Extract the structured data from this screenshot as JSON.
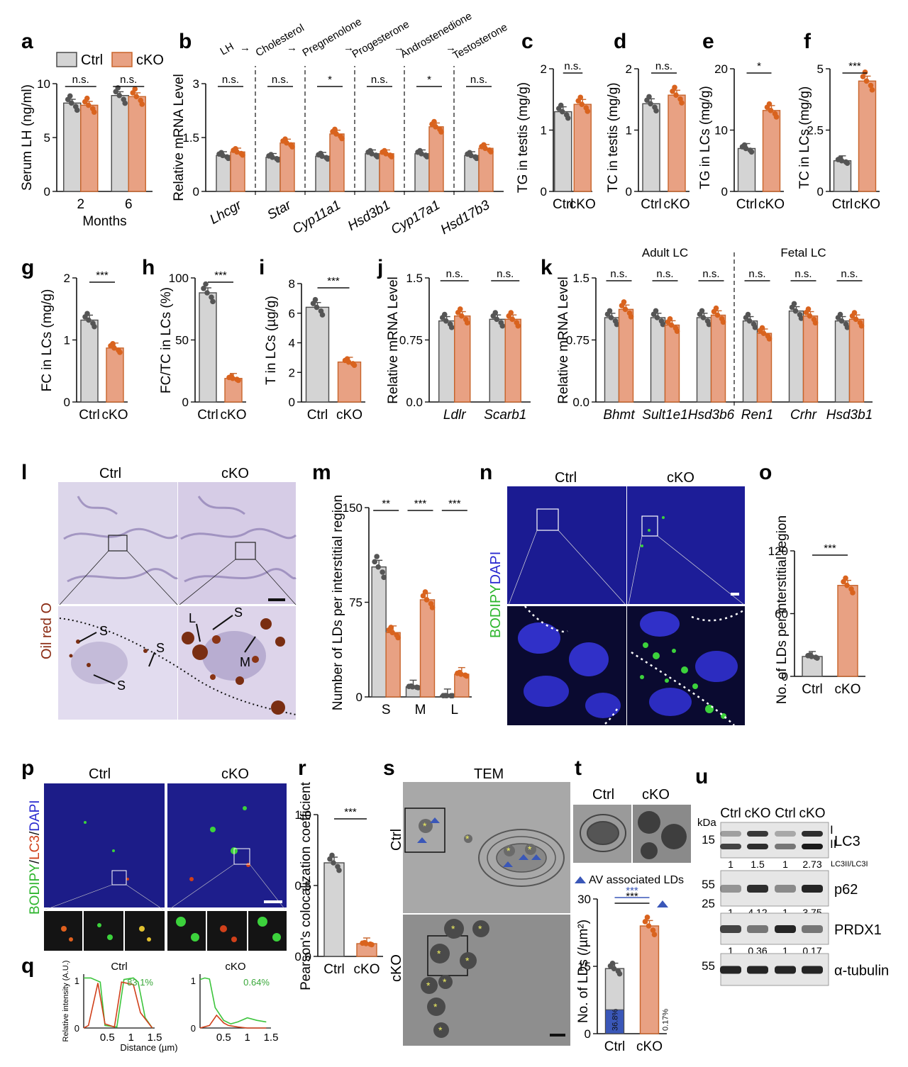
{
  "legend": {
    "ctrl": "Ctrl",
    "cko": "cKO"
  },
  "colors": {
    "ctrl_fill": "#d4d4d4",
    "ctrl_edge": "#4a4a4a",
    "cko_fill": "#e8a183",
    "cko_edge": "#c8642a",
    "ctrl_dot": "#555555",
    "cko_dot": "#d9631e",
    "dapi": "#2a2ad0",
    "bodipy": "#3cd23c",
    "oil_bg": "#cdc3dc",
    "oil_drop": "#7a2e12",
    "tem_bg": "#9a9a9a",
    "av_blue": "#3a57b8"
  },
  "chart_data": [
    {
      "panel": "a",
      "type": "bar",
      "categories": [
        "2",
        "6"
      ],
      "xlabel": "Months",
      "ylabel": "Serum LH (ng/ml)",
      "ylim": [
        0,
        10
      ],
      "yticks": [
        "0",
        "5",
        "10"
      ],
      "series": [
        {
          "name": "Ctrl",
          "values": [
            8.2,
            8.9
          ]
        },
        {
          "name": "cKO",
          "values": [
            8.0,
            8.8
          ]
        }
      ],
      "annotations": [
        "n.s.",
        "n.s."
      ]
    },
    {
      "panel": "b",
      "type": "bar",
      "categories": [
        "Lhcgr",
        "Star",
        "Cyp11a1",
        "Hsd3b1",
        "Cyp17a1",
        "Hsd17b3"
      ],
      "ylabel": "Relative mRNA Level",
      "ylim": [
        0,
        3
      ],
      "yticks": [
        "0",
        "1.5",
        "3"
      ],
      "series": [
        {
          "name": "Ctrl",
          "values": [
            1.0,
            0.95,
            0.98,
            1.05,
            1.05,
            1.0
          ]
        },
        {
          "name": "cKO",
          "values": [
            1.1,
            1.35,
            1.6,
            1.05,
            1.8,
            1.2
          ]
        }
      ],
      "annotations": [
        "n.s.",
        "n.s.",
        "*",
        "n.s.",
        "*",
        "n.s."
      ],
      "pathway": [
        "LH",
        "Cholesterol",
        "Pregnenolone",
        "Progesterone",
        "Androstenedione",
        "Testosterone"
      ]
    },
    {
      "panel": "c",
      "type": "bar",
      "categories": [
        "Ctrl",
        "cKO"
      ],
      "ylabel": "TG in testis (mg/g)",
      "ylim": [
        0,
        2
      ],
      "yticks": [
        "0",
        "1",
        "2"
      ],
      "values": [
        1.3,
        1.42
      ],
      "annotations": [
        "n.s."
      ]
    },
    {
      "panel": "d",
      "type": "bar",
      "categories": [
        "Ctrl",
        "cKO"
      ],
      "ylabel": "TC in testis (mg/g)",
      "ylim": [
        0,
        2
      ],
      "yticks": [
        "0",
        "1",
        "2"
      ],
      "values": [
        1.43,
        1.57
      ],
      "annotations": [
        "n.s."
      ]
    },
    {
      "panel": "e",
      "type": "bar",
      "categories": [
        "Ctrl",
        "cKO"
      ],
      "ylabel": "TG in LCs (mg/g)",
      "ylim": [
        0,
        20
      ],
      "yticks": [
        "0",
        "10",
        "20"
      ],
      "values": [
        7.0,
        13.2
      ],
      "annotations": [
        "*"
      ]
    },
    {
      "panel": "f",
      "type": "bar",
      "categories": [
        "Ctrl",
        "cKO"
      ],
      "ylabel": "TC in LCs (mg/g)",
      "ylim": [
        0,
        5
      ],
      "yticks": [
        "0",
        "2.5",
        "5"
      ],
      "values": [
        1.25,
        4.5
      ],
      "annotations": [
        "***"
      ]
    },
    {
      "panel": "g",
      "type": "bar",
      "categories": [
        "Ctrl",
        "cKO"
      ],
      "ylabel": "FC in LCs (mg/g)",
      "ylim": [
        0,
        2
      ],
      "yticks": [
        "0",
        "1",
        "2"
      ],
      "values": [
        1.32,
        0.87
      ],
      "annotations": [
        "***"
      ]
    },
    {
      "panel": "h",
      "type": "bar",
      "categories": [
        "Ctrl",
        "cKO"
      ],
      "ylabel": "FC/TC in LCs (%)",
      "ylim": [
        0,
        100
      ],
      "yticks": [
        "0",
        "50",
        "100"
      ],
      "values": [
        88,
        19
      ],
      "annotations": [
        "***"
      ]
    },
    {
      "panel": "i",
      "type": "bar",
      "categories": [
        "Ctrl",
        "cKO"
      ],
      "ylabel": "T in LCs (µg/g)",
      "ylim": [
        0,
        8
      ],
      "yticks": [
        "0",
        "2",
        "4",
        "6",
        "8"
      ],
      "values": [
        6.4,
        2.7
      ],
      "annotations": [
        "***"
      ]
    },
    {
      "panel": "j",
      "type": "bar",
      "categories": [
        "Ldlr",
        "Scarb1"
      ],
      "ylabel": "Relative mRNA Level",
      "ylim": [
        0,
        1.5
      ],
      "yticks": [
        "0.0",
        "0.75",
        "1.5"
      ],
      "series": [
        {
          "name": "Ctrl",
          "values": [
            0.98,
            1.0
          ]
        },
        {
          "name": "cKO",
          "values": [
            1.04,
            1.0
          ]
        }
      ],
      "annotations": [
        "n.s.",
        "n.s."
      ]
    },
    {
      "panel": "k",
      "type": "bar",
      "categories": [
        "Bhmt",
        "Sult1e1",
        "Hsd3b6",
        "Ren1",
        "Crhr",
        "Hsd3b1"
      ],
      "ylabel": "Relative mRNA Level",
      "ylim": [
        0,
        1.5
      ],
      "yticks": [
        "0.0",
        "0.75",
        "1.5"
      ],
      "groups": [
        "Adult LC",
        "Fetal LC"
      ],
      "series": [
        {
          "name": "Ctrl",
          "values": [
            1.02,
            1.02,
            1.02,
            0.98,
            1.1,
            0.98
          ]
        },
        {
          "name": "cKO",
          "values": [
            1.12,
            0.93,
            1.05,
            0.83,
            1.04,
            1.0
          ]
        }
      ],
      "annotations": [
        "n.s.",
        "n.s.",
        "n.s.",
        "n.s.",
        "n.s.",
        "n.s."
      ]
    },
    {
      "panel": "m",
      "type": "bar",
      "categories": [
        "S",
        "M",
        "L"
      ],
      "ylabel": "Number of LDs per interstitial region",
      "ylim": [
        0,
        150
      ],
      "yticks": [
        "0",
        "75",
        "150"
      ],
      "series": [
        {
          "name": "Ctrl",
          "values": [
            103,
            8,
            1
          ]
        },
        {
          "name": "cKO",
          "values": [
            51,
            77,
            18
          ]
        }
      ],
      "annotations": [
        "**",
        "***",
        "***"
      ]
    },
    {
      "panel": "o",
      "type": "bar",
      "categories": [
        "Ctrl",
        "cKO"
      ],
      "ylabel": "No. of LDs per interstitial region",
      "ylim": [
        0,
        120
      ],
      "yticks": [
        "0",
        "60",
        "120"
      ],
      "values": [
        19,
        87
      ],
      "annotations": [
        "***"
      ]
    },
    {
      "panel": "r",
      "type": "bar",
      "categories": [
        "Ctrl",
        "cKO"
      ],
      "ylabel": "Pearson's colocalization coefficient",
      "ylim": [
        0,
        1.0
      ],
      "yticks": [
        "0.0",
        "0.5",
        "1.0"
      ],
      "values": [
        0.66,
        0.09
      ],
      "annotations": [
        "***"
      ]
    },
    {
      "panel": "t",
      "type": "bar",
      "categories": [
        "Ctrl",
        "cKO"
      ],
      "ylabel": "No. of LDs (/µm²)",
      "ylim": [
        0,
        30
      ],
      "yticks": [
        "0",
        "15",
        "30"
      ],
      "values": [
        14.5,
        24
      ],
      "av_fraction": [
        "36.8%",
        "0.17%"
      ],
      "legend": "AV associated LDs",
      "annotations": [
        "***",
        "***"
      ]
    },
    {
      "panel": "q",
      "type": "line",
      "xlabel": "Distance (µm)",
      "ylabel": "Relative intensity (A.U.)",
      "xticks": [
        "0.5",
        "1",
        "1.5"
      ],
      "yticks": [
        "0",
        "1"
      ],
      "plots": [
        {
          "title": "Ctrl",
          "overlap": "83.1%"
        },
        {
          "title": "cKO",
          "overlap": "0.64%"
        }
      ]
    }
  ],
  "panels": {
    "a": "a",
    "b": "b",
    "c": "c",
    "d": "d",
    "e": "e",
    "f": "f",
    "g": "g",
    "h": "h",
    "i": "i",
    "j": "j",
    "k": "k",
    "l": "l",
    "m": "m",
    "n": "n",
    "o": "o",
    "p": "p",
    "q": "q",
    "r": "r",
    "s": "s",
    "t": "t",
    "u": "u"
  },
  "micro": {
    "l_stain": "Oil red O",
    "l_ctrl": "Ctrl",
    "l_cko": "cKO",
    "l_labels": [
      "S",
      "S",
      "S",
      "L",
      "S",
      "M"
    ],
    "n_stain_green": "BODIPY",
    "n_stain_blue": "DAPI",
    "n_ctrl": "Ctrl",
    "n_cko": "cKO",
    "p_stain_green": "BODIPY",
    "p_stain_sep1": "/",
    "p_stain_red": "LC3",
    "p_stain_sep2": "/",
    "p_stain_blue": "DAPI",
    "p_ctrl": "Ctrl",
    "p_cko": "cKO",
    "s_title": "TEM",
    "s_ctrl": "Ctrl",
    "s_cko": "cKO",
    "t_ctrl": "Ctrl",
    "t_cko": "cKO"
  },
  "western": {
    "lanes": [
      "Ctrl",
      "cKO",
      "Ctrl",
      "cKO"
    ],
    "kda_label": "kDa",
    "markers": [
      "15",
      "55",
      "25",
      "55"
    ],
    "bands": [
      {
        "name": "LC3",
        "sub": [
          "I",
          "II"
        ],
        "values": [
          "1",
          "1.5",
          "1",
          "2.73"
        ],
        "ratio_label": "LC3II/LC3I"
      },
      {
        "name": "p62",
        "values": [
          "1",
          "4.12",
          "1",
          "3.75"
        ]
      },
      {
        "name": "PRDX1",
        "values": [
          "1",
          "0.36",
          "1",
          "0.17"
        ]
      },
      {
        "name": "α-tubulin"
      }
    ]
  }
}
